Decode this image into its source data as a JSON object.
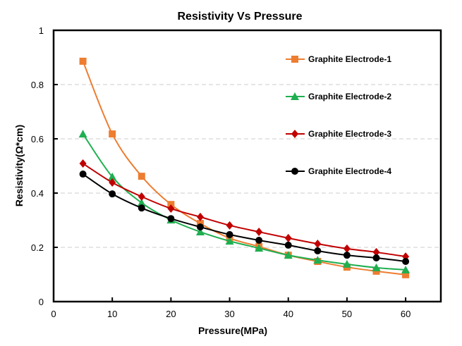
{
  "chart_data": {
    "type": "line",
    "title": "Resistivity Vs Pressure",
    "xlabel": "Pressure(MPa)",
    "ylabel": "Resistivity(Ω*cm)",
    "xlim": [
      0,
      66
    ],
    "ylim": [
      0,
      1
    ],
    "xticks": [
      0,
      10,
      20,
      30,
      40,
      50,
      60
    ],
    "yticks": [
      0,
      0.2,
      0.4,
      0.6,
      0.8,
      1
    ],
    "ytick_labels": [
      "0",
      "0.2",
      "0.4",
      "0.6",
      "0.8",
      "1"
    ],
    "grid": "horizontal dashed",
    "legend_placement": "right",
    "x": [
      5,
      10,
      15,
      20,
      25,
      30,
      35,
      40,
      45,
      50,
      55,
      60
    ],
    "series": [
      {
        "name": "Graphite Electrode-1",
        "color": "#ED7D31",
        "marker": "square",
        "values": [
          0.886,
          0.618,
          0.462,
          0.358,
          0.288,
          0.234,
          0.203,
          0.171,
          0.148,
          0.127,
          0.112,
          0.099
        ]
      },
      {
        "name": "Graphite Electrode-2",
        "color": "#1FAF50",
        "marker": "triangle",
        "values": [
          0.618,
          0.46,
          0.364,
          0.301,
          0.257,
          0.223,
          0.197,
          0.171,
          0.153,
          0.138,
          0.125,
          0.117
        ]
      },
      {
        "name": "Graphite Electrode-3",
        "color": "#C00000",
        "marker": "diamond",
        "values": [
          0.509,
          0.439,
          0.387,
          0.343,
          0.312,
          0.281,
          0.257,
          0.234,
          0.213,
          0.195,
          0.182,
          0.166
        ]
      },
      {
        "name": "Graphite Electrode-4",
        "color": "#000000",
        "marker": "circle",
        "values": [
          0.47,
          0.397,
          0.345,
          0.306,
          0.275,
          0.247,
          0.226,
          0.208,
          0.187,
          0.171,
          0.161,
          0.148
        ]
      }
    ]
  }
}
